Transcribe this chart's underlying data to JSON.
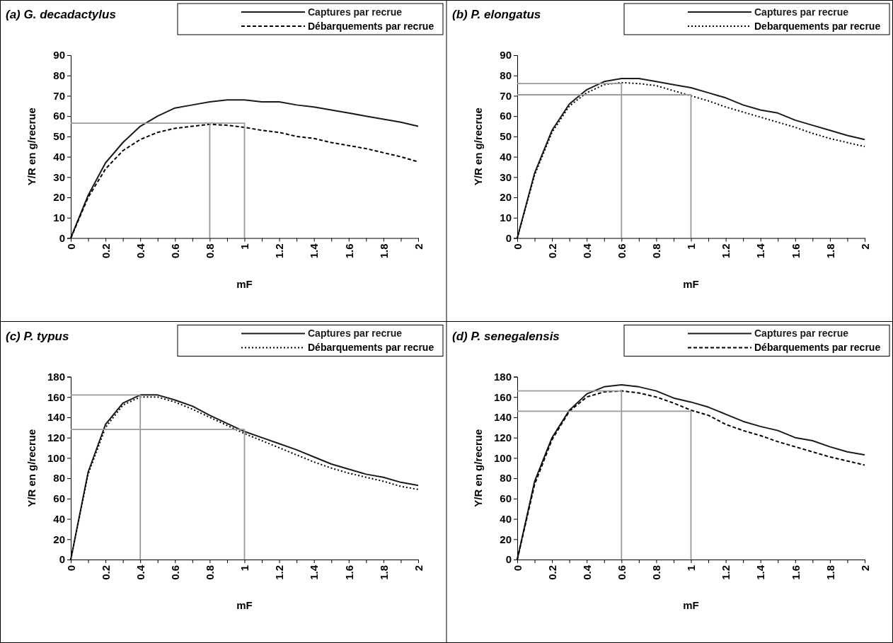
{
  "chart_data": [
    {
      "type": "line",
      "title": "(a) G. decadactylus",
      "xlabel": "mF",
      "ylabel": "Y/R en g/recrue",
      "legend": "top right",
      "grid": false,
      "x": [
        0,
        0.1,
        0.2,
        0.3,
        0.4,
        0.5,
        0.6,
        0.7,
        0.8,
        0.9,
        1,
        1.1,
        1.2,
        1.3,
        1.4,
        1.5,
        1.6,
        1.7,
        1.8,
        1.9,
        2
      ],
      "xlim": [
        0,
        2
      ],
      "xticks": [
        0,
        {
          "value": 0.1,
          "label": null
        },
        0.2,
        {
          "value": 0.3,
          "label": null
        },
        0.4,
        {
          "value": 0.5,
          "label": null
        },
        0.6,
        {
          "value": 0.7,
          "label": null
        },
        0.8,
        {
          "value": 0.9,
          "label": null
        },
        1,
        {
          "value": 1.1,
          "label": null
        },
        1.2,
        {
          "value": 1.3,
          "label": null
        },
        1.4,
        {
          "value": 1.5,
          "label": null
        },
        1.6,
        {
          "value": 1.7,
          "label": null
        },
        1.8,
        {
          "value": 1.9,
          "label": null
        },
        2
      ],
      "ylim": [
        0,
        90
      ],
      "yticks": [
        0,
        10,
        20,
        30,
        40,
        50,
        60,
        70,
        80,
        90
      ],
      "series": [
        {
          "name": "Captures par recrue",
          "color": "#1a1a1a",
          "line_style": "solid",
          "values": [
            0,
            21,
            37,
            47,
            55,
            60,
            64,
            65.5,
            67,
            68,
            68,
            67,
            67,
            65.5,
            64.5,
            63,
            61.5,
            60,
            58.5,
            57,
            55
          ]
        },
        {
          "name": "Débarquements par recrue",
          "color": "#000000",
          "line_style": "dashed",
          "values": [
            0,
            20,
            34,
            43,
            48.5,
            52,
            54,
            55,
            56,
            55.5,
            54.5,
            53,
            52,
            50,
            49,
            47,
            45.5,
            44,
            42,
            40,
            37.5
          ]
        },
        {
          "color": "#999999",
          "line_style": "solid",
          "x": [
            0,
            1,
            1
          ],
          "values": [
            56.5,
            56.5,
            0
          ]
        },
        {
          "color": "#999999",
          "line_style": "solid",
          "x": [
            0.8,
            0.8
          ],
          "values": [
            56.5,
            0
          ]
        }
      ]
    },
    {
      "type": "line",
      "title": "(b) P. elongatus",
      "xlabel": "mF",
      "ylabel": "Y/R en g/recrue",
      "legend": "top right",
      "grid": false,
      "x": [
        0,
        0.1,
        0.2,
        0.3,
        0.4,
        0.5,
        0.6,
        0.7,
        0.8,
        0.9,
        1,
        1.1,
        1.2,
        1.3,
        1.4,
        1.5,
        1.6,
        1.7,
        1.8,
        1.9,
        2
      ],
      "xlim": [
        0,
        2
      ],
      "xticks": [
        0,
        {
          "value": 0.1,
          "label": null
        },
        0.2,
        {
          "value": 0.3,
          "label": null
        },
        0.4,
        {
          "value": 0.5,
          "label": null
        },
        0.6,
        {
          "value": 0.7,
          "label": null
        },
        0.8,
        {
          "value": 0.9,
          "label": null
        },
        1,
        {
          "value": 1.1,
          "label": null
        },
        1.2,
        {
          "value": 1.3,
          "label": null
        },
        1.4,
        {
          "value": 1.5,
          "label": null
        },
        1.6,
        {
          "value": 1.7,
          "label": null
        },
        1.8,
        {
          "value": 1.9,
          "label": null
        },
        2
      ],
      "ylim": [
        0,
        90
      ],
      "yticks": [
        0,
        10,
        20,
        30,
        40,
        50,
        60,
        70,
        80,
        90
      ],
      "series": [
        {
          "name": "Captures par recrue",
          "color": "#1a1a1a",
          "line_style": "solid",
          "values": [
            0,
            32,
            53,
            66,
            73,
            77,
            78.5,
            78.5,
            77,
            75.5,
            74,
            71.5,
            69,
            65.5,
            63,
            61.5,
            58,
            55.5,
            53,
            50.5,
            48.5
          ]
        },
        {
          "name": "Debarquements par recrue",
          "color": "#000000",
          "line_style": "dotted",
          "values": [
            0,
            31,
            52,
            65,
            71.5,
            75.5,
            76.5,
            76,
            75,
            72.5,
            70,
            67.5,
            64.5,
            62,
            59.5,
            57,
            54.5,
            51.5,
            49,
            47,
            45
          ]
        },
        {
          "color": "#999999",
          "line_style": "solid",
          "x": [
            0,
            0.6,
            0.6
          ],
          "values": [
            76,
            76,
            0
          ]
        },
        {
          "color": "#999999",
          "line_style": "solid",
          "x": [
            0,
            1,
            1
          ],
          "values": [
            70.5,
            70.5,
            0
          ]
        }
      ]
    },
    {
      "type": "line",
      "title": "(c) P. typus",
      "xlabel": "mF",
      "ylabel": "Y/R en g/recrue",
      "legend": "top right",
      "grid": false,
      "x": [
        0,
        0.1,
        0.2,
        0.3,
        0.4,
        0.5,
        0.6,
        0.7,
        0.8,
        0.9,
        1,
        1.1,
        1.2,
        1.3,
        1.4,
        1.5,
        1.6,
        1.7,
        1.8,
        1.9,
        2
      ],
      "xlim": [
        0,
        2
      ],
      "xticks": [
        0,
        {
          "value": 0.1,
          "label": null
        },
        0.2,
        {
          "value": 0.3,
          "label": null
        },
        0.4,
        {
          "value": 0.5,
          "label": null
        },
        0.6,
        {
          "value": 0.7,
          "label": null
        },
        0.8,
        {
          "value": 0.9,
          "label": null
        },
        1,
        {
          "value": 1.1,
          "label": null
        },
        1.2,
        {
          "value": 1.3,
          "label": null
        },
        1.4,
        {
          "value": 1.5,
          "label": null
        },
        1.6,
        {
          "value": 1.7,
          "label": null
        },
        1.8,
        {
          "value": 1.9,
          "label": null
        },
        2
      ],
      "ylim": [
        0,
        180
      ],
      "yticks": [
        0,
        20,
        40,
        60,
        80,
        100,
        120,
        140,
        160,
        180
      ],
      "series": [
        {
          "name": "Captures par recrue",
          "color": "#1a1a1a",
          "line_style": "solid",
          "values": [
            0,
            86,
            133,
            154,
            162,
            162,
            157,
            151,
            142,
            134,
            126,
            120,
            114,
            108,
            101,
            94,
            89,
            84,
            81,
            76,
            73
          ]
        },
        {
          "name": "Débarquements par recrue",
          "color": "#000000",
          "line_style": "dotted",
          "values": [
            0,
            84,
            130,
            152,
            160,
            160,
            155,
            148,
            140,
            132,
            124,
            117,
            110,
            103,
            96,
            90,
            85,
            81,
            77,
            72,
            69
          ]
        },
        {
          "color": "#999999",
          "line_style": "solid",
          "x": [
            0,
            0.4,
            0.4
          ],
          "values": [
            162,
            162,
            0
          ]
        },
        {
          "color": "#999999",
          "line_style": "solid",
          "x": [
            0,
            1,
            1
          ],
          "values": [
            128,
            128,
            0
          ]
        }
      ]
    },
    {
      "type": "line",
      "title": "(d) P. senegalensis",
      "xlabel": "mF",
      "ylabel": "Y/R en g/recrue",
      "legend": "top right",
      "grid": false,
      "x": [
        0,
        0.1,
        0.2,
        0.3,
        0.4,
        0.5,
        0.6,
        0.7,
        0.8,
        0.9,
        1,
        1.1,
        1.2,
        1.3,
        1.4,
        1.5,
        1.6,
        1.7,
        1.8,
        1.9,
        2
      ],
      "xlim": [
        0,
        2
      ],
      "xticks": [
        0,
        {
          "value": 0.1,
          "label": null
        },
        0.2,
        {
          "value": 0.3,
          "label": null
        },
        0.4,
        {
          "value": 0.5,
          "label": null
        },
        0.6,
        {
          "value": 0.7,
          "label": null
        },
        0.8,
        {
          "value": 0.9,
          "label": null
        },
        1,
        {
          "value": 1.1,
          "label": null
        },
        1.2,
        {
          "value": 1.3,
          "label": null
        },
        1.4,
        {
          "value": 1.5,
          "label": null
        },
        1.6,
        {
          "value": 1.7,
          "label": null
        },
        1.8,
        {
          "value": 1.9,
          "label": null
        },
        2
      ],
      "ylim": [
        0,
        180
      ],
      "yticks": [
        0,
        20,
        40,
        60,
        80,
        100,
        120,
        140,
        160,
        180
      ],
      "series": [
        {
          "name": "Captures par recrue",
          "color": "#1a1a1a",
          "line_style": "solid",
          "values": [
            0,
            77,
            120,
            147,
            163,
            170,
            172,
            170,
            166,
            159,
            155,
            150,
            143,
            136,
            131,
            127,
            120,
            117,
            111,
            106,
            103
          ]
        },
        {
          "name": "Débarquements par recrue",
          "color": "#000000",
          "line_style": "dashed",
          "values": [
            0,
            74,
            118,
            146,
            160,
            165,
            166,
            164,
            160,
            154,
            147,
            142,
            133,
            127,
            122,
            116,
            111,
            106,
            101,
            97,
            93
          ]
        },
        {
          "color": "#999999",
          "line_style": "solid",
          "x": [
            0,
            0.6,
            0.6
          ],
          "values": [
            166,
            166,
            0
          ]
        },
        {
          "color": "#999999",
          "line_style": "solid",
          "x": [
            0,
            1,
            1
          ],
          "values": [
            146,
            146,
            0
          ]
        }
      ]
    }
  ]
}
